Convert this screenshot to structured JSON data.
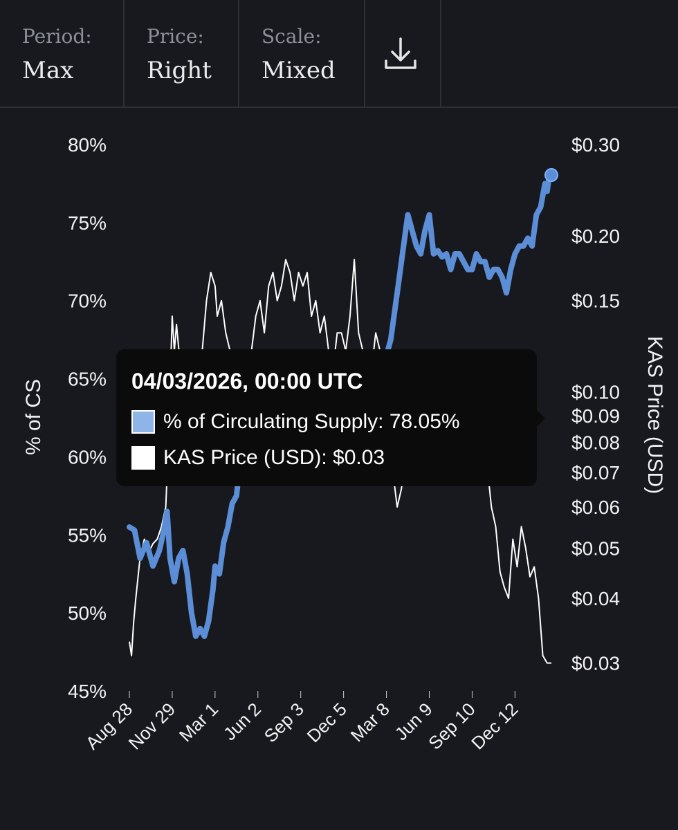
{
  "toolbar": {
    "period": {
      "label": "Period:",
      "value": "Max"
    },
    "price": {
      "label": "Price:",
      "value": "Right"
    },
    "scale": {
      "label": "Scale:",
      "value": "Mixed"
    },
    "download_icon": "download-icon"
  },
  "colors": {
    "background": "#17191e",
    "supply_series": "#5b8ed6",
    "price_series": "#ffffff",
    "supply_swatch": "#8fb4e8",
    "tooltip_bg": "#0b0b0c"
  },
  "tooltip": {
    "date": "04/03/2026, 00:00 UTC",
    "rows": [
      {
        "label": "% of Circulating Supply: 78.05%",
        "swatch": "#8fb4e8"
      },
      {
        "label": "KAS Price (USD): $0.03",
        "swatch": "#ffffff"
      }
    ]
  },
  "chart_data": {
    "type": "line",
    "x_ticks": [
      "Aug 28",
      "Nov 29",
      "Mar 1",
      "Jun 2",
      "Sep 3",
      "Dec 5",
      "Mar 8",
      "Jun 9",
      "Sep 10",
      "Dec 12"
    ],
    "y_left": {
      "label": "% of CS",
      "ticks": [
        "80%",
        "75%",
        "70%",
        "65%",
        "60%",
        "55%",
        "50%",
        "45%"
      ],
      "range": [
        45,
        80
      ]
    },
    "y_right": {
      "label": "KAS Price (USD)",
      "scale": "log",
      "ticks": [
        "$0.30",
        "$0.20",
        "$0.15",
        "$0.10",
        "$0.09",
        "$0.08",
        "$0.07",
        "$0.06",
        "$0.05",
        "$0.04",
        "$0.03"
      ],
      "tick_values": [
        0.3,
        0.2,
        0.15,
        0.1,
        0.09,
        0.08,
        0.07,
        0.06,
        0.05,
        0.04,
        0.03
      ],
      "range": [
        0.0265,
        0.3
      ]
    },
    "x_range": [
      0,
      9.85
    ],
    "series": [
      {
        "name": "% of Circulating Supply",
        "axis": "left",
        "x": [
          0,
          0.12,
          0.25,
          0.4,
          0.55,
          0.7,
          0.8,
          0.88,
          0.95,
          1.05,
          1.15,
          1.25,
          1.35,
          1.45,
          1.55,
          1.65,
          1.75,
          1.85,
          1.95,
          2.0,
          2.1,
          2.2,
          2.3,
          2.4,
          2.5,
          2.6,
          2.7,
          2.8,
          2.9,
          3.0,
          3.1,
          3.2,
          3.3,
          3.4,
          3.5,
          3.6,
          3.7,
          3.8,
          3.9,
          4.0,
          4.1,
          4.2,
          4.3,
          4.4,
          4.5,
          4.6,
          4.7,
          4.8,
          4.9,
          5.0,
          5.1,
          5.2,
          5.3,
          5.4,
          5.5,
          5.6,
          5.7,
          5.8,
          5.9,
          6.0,
          6.1,
          6.2,
          6.3,
          6.4,
          6.5,
          6.6,
          6.7,
          6.8,
          6.9,
          7.0,
          7.1,
          7.2,
          7.3,
          7.4,
          7.5,
          7.6,
          7.7,
          7.8,
          7.9,
          8.0,
          8.1,
          8.2,
          8.3,
          8.4,
          8.5,
          8.6,
          8.7,
          8.8,
          8.9,
          9.0,
          9.1,
          9.2,
          9.3,
          9.4,
          9.5,
          9.6,
          9.7,
          9.75,
          9.8,
          9.85
        ],
        "values": [
          55.5,
          55.3,
          53.5,
          54.5,
          53.0,
          54.0,
          55.2,
          56.5,
          53.5,
          52.0,
          53.5,
          54.0,
          52.5,
          50.0,
          48.5,
          49.0,
          48.5,
          49.5,
          51.5,
          53.0,
          52.5,
          54.5,
          55.5,
          57.0,
          57.5,
          60.0,
          61.0,
          63.5,
          64.0,
          64.5,
          63.0,
          62.5,
          61.5,
          61.0,
          61.2,
          61.5,
          61.0,
          60.5,
          61.5,
          61.5,
          61.0,
          60.5,
          61.5,
          61.5,
          61.0,
          59.5,
          60.0,
          59.0,
          59.5,
          59.5,
          60.0,
          60.5,
          61.0,
          61.5,
          62.0,
          62.5,
          63.0,
          63.5,
          64.5,
          66.5,
          67.5,
          69.5,
          71.5,
          73.5,
          75.5,
          74.5,
          73.5,
          73.0,
          74.5,
          75.5,
          73.0,
          73.2,
          72.8,
          73.0,
          72.0,
          73.0,
          73.0,
          72.5,
          72.0,
          72.0,
          73.0,
          72.5,
          72.5,
          71.5,
          72.0,
          72.0,
          71.5,
          70.5,
          72.0,
          73.0,
          73.5,
          73.5,
          74.0,
          73.5,
          75.5,
          76.0,
          77.5,
          77.0,
          78.0,
          78.05
        ]
      },
      {
        "name": "KAS Price (USD)",
        "axis": "right",
        "x": [
          0,
          0.05,
          0.1,
          0.15,
          0.25,
          0.35,
          0.45,
          0.55,
          0.65,
          0.75,
          0.85,
          0.9,
          1.0,
          1.05,
          1.1,
          1.2,
          1.3,
          1.35,
          1.45,
          1.5,
          1.6,
          1.7,
          1.8,
          1.9,
          2.0,
          2.05,
          2.15,
          2.25,
          2.35,
          2.45,
          2.55,
          2.65,
          2.75,
          2.85,
          2.95,
          3.05,
          3.15,
          3.25,
          3.35,
          3.45,
          3.55,
          3.65,
          3.75,
          3.85,
          3.95,
          4.05,
          4.15,
          4.25,
          4.35,
          4.45,
          4.55,
          4.65,
          4.75,
          4.85,
          4.95,
          5.05,
          5.15,
          5.25,
          5.35,
          5.45,
          5.55,
          5.65,
          5.75,
          5.85,
          5.95,
          6.05,
          6.15,
          6.25,
          6.35,
          6.45,
          6.55,
          6.65,
          6.75,
          6.85,
          6.95,
          7.05,
          7.15,
          7.25,
          7.35,
          7.45,
          7.55,
          7.65,
          7.75,
          7.85,
          7.95,
          8.05,
          8.15,
          8.25,
          8.35,
          8.45,
          8.55,
          8.65,
          8.75,
          8.85,
          8.95,
          9.05,
          9.15,
          9.25,
          9.35,
          9.45,
          9.55,
          9.65,
          9.75,
          9.85
        ],
        "values": [
          0.033,
          0.031,
          0.036,
          0.04,
          0.048,
          0.052,
          0.049,
          0.051,
          0.052,
          0.055,
          0.06,
          0.075,
          0.14,
          0.12,
          0.135,
          0.11,
          0.12,
          0.1,
          0.11,
          0.085,
          0.095,
          0.12,
          0.15,
          0.17,
          0.16,
          0.14,
          0.15,
          0.13,
          0.12,
          0.11,
          0.1,
          0.12,
          0.11,
          0.12,
          0.14,
          0.15,
          0.13,
          0.16,
          0.17,
          0.15,
          0.16,
          0.18,
          0.17,
          0.15,
          0.17,
          0.16,
          0.17,
          0.14,
          0.15,
          0.13,
          0.14,
          0.12,
          0.11,
          0.13,
          0.13,
          0.12,
          0.14,
          0.18,
          0.13,
          0.12,
          0.12,
          0.11,
          0.13,
          0.12,
          0.1,
          0.09,
          0.07,
          0.06,
          0.065,
          0.075,
          0.08,
          0.085,
          0.09,
          0.1,
          0.11,
          0.09,
          0.08,
          0.07,
          0.085,
          0.095,
          0.11,
          0.1,
          0.09,
          0.1,
          0.09,
          0.08,
          0.07,
          0.068,
          0.072,
          0.06,
          0.055,
          0.045,
          0.042,
          0.04,
          0.052,
          0.046,
          0.055,
          0.05,
          0.044,
          0.046,
          0.04,
          0.031,
          0.03,
          0.03
        ]
      }
    ],
    "marker": {
      "series": "% of Circulating Supply",
      "x": 9.85,
      "value": 78.05
    },
    "grid": false,
    "legend": "none"
  }
}
